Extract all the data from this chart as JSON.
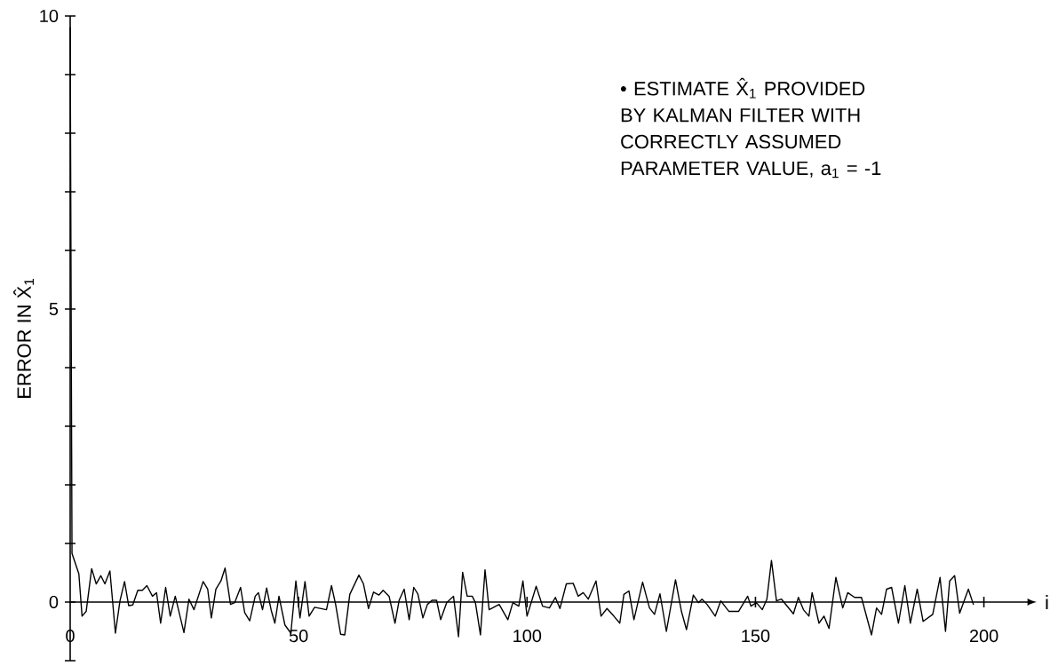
{
  "chart_data": {
    "type": "line",
    "xlabel": "i",
    "ylabel": "ERROR IN X̂$_{1}$",
    "annotations": [
      "• ESTIMATE X̂$_{1}$ PROVIDED BY KALMAN FILTER WITH CORRECTLY ASSUMED PARAMETER VALUE, a$_{1}$ = -1"
    ],
    "x": [
      0,
      0.4,
      1.9,
      2.6,
      3.5,
      4.7,
      5.7,
      6.7,
      7.6,
      8.7,
      9.9,
      10.9,
      11.9,
      12.8,
      13.7,
      14.8,
      15.8,
      16.8,
      18.0,
      18.9,
      19.8,
      20.9,
      21.9,
      23.0,
      24.9,
      26.0,
      27.1,
      29.1,
      30.1,
      30.9,
      31.9,
      33.0,
      33.9,
      35.1,
      36.0,
      37.3,
      38.2,
      39.3,
      40.5,
      41.2,
      42.1,
      43.0,
      44.0,
      44.8,
      45.7,
      47.0,
      48.3,
      49.4,
      50.3,
      51.4,
      52.3,
      53.5,
      56.1,
      57.2,
      58.1,
      59.2,
      60.1,
      61.2,
      63.2,
      64.2,
      65.3,
      66.4,
      67.6,
      68.5,
      69.8,
      71.1,
      72.0,
      73.1,
      74.2,
      75.2,
      76.1,
      77.2,
      78.2,
      79.2,
      80.2,
      81.1,
      82.4,
      83.9,
      85.0,
      85.9,
      86.9,
      88.0,
      88.7,
      89.8,
      90.8,
      91.7,
      93.9,
      95.8,
      96.9,
      98.2,
      99.1,
      100.0,
      102.0,
      103.4,
      104.9,
      106.2,
      107.2,
      108.6,
      110.1,
      111.2,
      112.3,
      113.4,
      115.1,
      116.2,
      117.5,
      119.0,
      120.3,
      121.2,
      122.3,
      123.4,
      125.3,
      126.8,
      127.9,
      129.1,
      130.5,
      132.5,
      133.8,
      134.9,
      136.4,
      137.5,
      138.3,
      139.4,
      141.2,
      142.4,
      144.2,
      146.3,
      148.3,
      149.0,
      150.2,
      151.5,
      152.5,
      153.5,
      154.6,
      155.7,
      158.3,
      159.4,
      160.5,
      161.7,
      162.4,
      163.9,
      165.0,
      166.1,
      167.6,
      169.1,
      170.2,
      171.7,
      173.2,
      175.4,
      176.5,
      177.6,
      178.7,
      179.8,
      181.3,
      182.7,
      183.9,
      185.4,
      186.7,
      188.8,
      190.4,
      191.6,
      192.5,
      193.6,
      194.7,
      196.6,
      197.7
    ],
    "series": [
      {
        "color": "#000000",
        "values": [
          9.8,
          0.83,
          0.48,
          -0.24,
          -0.16,
          0.57,
          0.31,
          0.45,
          0.31,
          0.53,
          -0.53,
          0.02,
          0.35,
          -0.06,
          -0.05,
          0.2,
          0.2,
          0.28,
          0.1,
          0.16,
          -0.36,
          0.25,
          -0.24,
          0.1,
          -0.52,
          0.05,
          -0.13,
          0.35,
          0.22,
          -0.27,
          0.22,
          0.36,
          0.58,
          -0.04,
          -0.01,
          0.25,
          -0.18,
          -0.32,
          0.1,
          0.16,
          -0.13,
          0.24,
          -0.14,
          -0.36,
          0.1,
          -0.39,
          -0.53,
          0.36,
          -0.27,
          0.35,
          -0.24,
          -0.09,
          -0.13,
          0.28,
          -0.04,
          -0.55,
          -0.56,
          0.13,
          0.46,
          0.31,
          -0.11,
          0.17,
          0.12,
          0.2,
          0.1,
          -0.36,
          0.03,
          0.22,
          -0.3,
          0.25,
          0.14,
          -0.27,
          -0.04,
          0.03,
          0.03,
          -0.3,
          -0.01,
          0.1,
          -0.59,
          0.51,
          0.1,
          0.1,
          -0.01,
          -0.56,
          0.55,
          -0.13,
          -0.04,
          -0.3,
          -0.01,
          -0.07,
          0.36,
          -0.24,
          0.27,
          -0.07,
          -0.1,
          0.08,
          -0.11,
          0.31,
          0.32,
          0.1,
          0.16,
          0.05,
          0.36,
          -0.24,
          -0.11,
          -0.24,
          -0.36,
          0.13,
          0.19,
          -0.3,
          0.34,
          -0.1,
          -0.21,
          0.14,
          -0.5,
          0.38,
          -0.16,
          -0.47,
          0.12,
          -0.01,
          0.05,
          -0.04,
          -0.24,
          0.02,
          -0.16,
          -0.16,
          0.1,
          -0.07,
          -0.01,
          -0.13,
          0.05,
          0.71,
          0.02,
          0.05,
          -0.2,
          0.08,
          -0.13,
          -0.24,
          0.16,
          -0.36,
          -0.24,
          -0.45,
          0.42,
          -0.1,
          0.16,
          0.08,
          0.08,
          -0.56,
          -0.1,
          -0.21,
          0.22,
          0.25,
          -0.36,
          0.28,
          -0.36,
          0.22,
          -0.33,
          -0.21,
          0.42,
          -0.5,
          0.36,
          0.45,
          -0.19,
          0.22,
          -0.04
        ]
      }
    ],
    "xlim": [
      0,
      210
    ],
    "ylim": [
      -1,
      10
    ],
    "xticks": [
      0,
      50,
      100,
      150,
      200
    ],
    "yticks": [
      {
        "value": -1,
        "label": null
      },
      0,
      {
        "value": 1,
        "label": null
      },
      {
        "value": 2,
        "label": null
      },
      {
        "value": 3,
        "label": null
      },
      {
        "value": 4,
        "label": null
      },
      5,
      {
        "value": 6,
        "label": null
      },
      {
        "value": 7,
        "label": null
      },
      {
        "value": 8,
        "label": null
      },
      {
        "value": 9,
        "label": null
      },
      10
    ],
    "grid": false,
    "marker": "none",
    "line_style": "solid"
  }
}
